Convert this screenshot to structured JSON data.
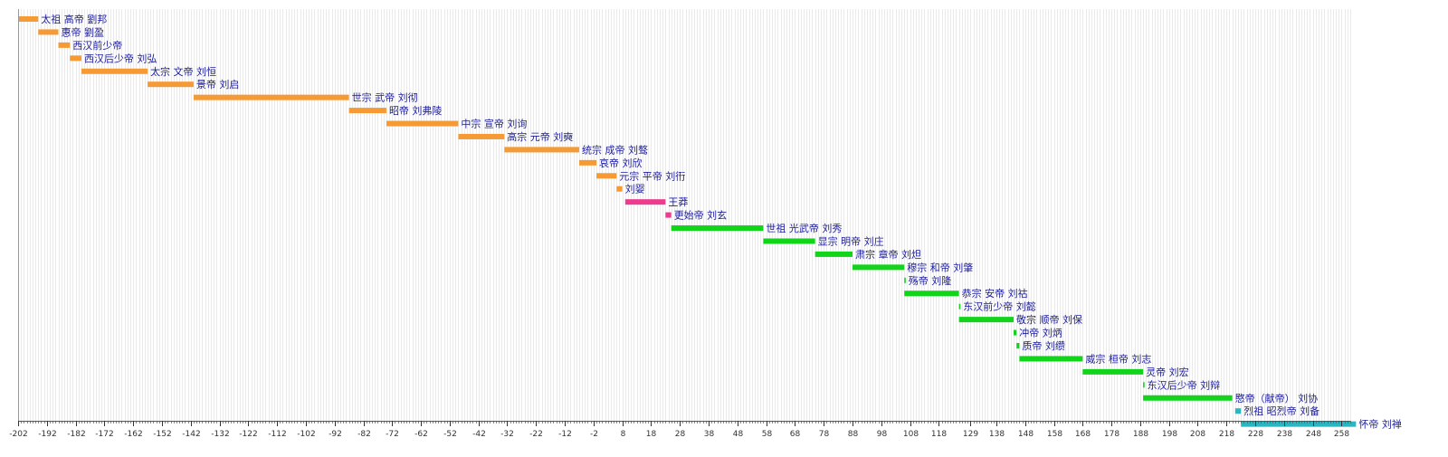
{
  "chart_data": {
    "type": "gantt",
    "title": "",
    "xlabel": "",
    "ylabel": "",
    "xlim": [
      -202,
      261
    ],
    "x_ticks": [
      -202,
      -192,
      -182,
      -172,
      -162,
      -152,
      -142,
      -132,
      -122,
      -112,
      -102,
      -92,
      -82,
      -72,
      -62,
      -52,
      -42,
      -32,
      -22,
      -12,
      -2,
      8,
      18,
      28,
      38,
      48,
      58,
      68,
      78,
      88,
      98,
      108,
      118,
      129,
      138,
      148,
      158,
      168,
      178,
      188,
      198,
      208,
      218,
      228,
      238,
      248,
      258
    ],
    "grid": true,
    "colors": {
      "西汉": "#f59a35",
      "新": "#ef3b8f",
      "东汉": "#11d41b",
      "蜀汉": "#2ab7c2"
    },
    "rows": [
      {
        "label": "太祖 高帝 劉邦",
        "start": -202,
        "end": -195,
        "group": "西汉"
      },
      {
        "label": "惠帝 劉盈",
        "start": -195,
        "end": -188,
        "group": "西汉"
      },
      {
        "label": "西汉前少帝",
        "start": -188,
        "end": -184,
        "group": "西汉"
      },
      {
        "label": "西汉后少帝 刘弘",
        "start": -184,
        "end": -180,
        "group": "西汉"
      },
      {
        "label": "太宗 文帝 刘恒",
        "start": -180,
        "end": -157,
        "group": "西汉"
      },
      {
        "label": "景帝 刘启",
        "start": -157,
        "end": -141,
        "group": "西汉"
      },
      {
        "label": "世宗 武帝 刘彻",
        "start": -141,
        "end": -87,
        "group": "西汉"
      },
      {
        "label": "昭帝 刘弗陵",
        "start": -87,
        "end": -74,
        "group": "西汉"
      },
      {
        "label": "中宗 宣帝 刘询",
        "start": -74,
        "end": -49,
        "group": "西汉"
      },
      {
        "label": "高宗 元帝 刘奭",
        "start": -49,
        "end": -33,
        "group": "西汉"
      },
      {
        "label": "统宗 成帝 刘骜",
        "start": -33,
        "end": -7,
        "group": "西汉"
      },
      {
        "label": "哀帝 刘欣",
        "start": -7,
        "end": -1,
        "group": "西汉"
      },
      {
        "label": "元宗 平帝 刘衎",
        "start": -1,
        "end": 6,
        "group": "西汉"
      },
      {
        "label": "刘婴",
        "start": 6,
        "end": 8,
        "group": "西汉"
      },
      {
        "label": "王莽",
        "start": 9,
        "end": 23,
        "group": "新"
      },
      {
        "label": "更始帝 刘玄",
        "start": 23,
        "end": 25,
        "group": "新"
      },
      {
        "label": "世祖 光武帝 刘秀",
        "start": 25,
        "end": 57,
        "group": "东汉"
      },
      {
        "label": "显宗 明帝 刘庄",
        "start": 57,
        "end": 75,
        "group": "东汉"
      },
      {
        "label": "肃宗 章帝 刘炟",
        "start": 75,
        "end": 88,
        "group": "东汉"
      },
      {
        "label": "穆宗 和帝 刘肇",
        "start": 88,
        "end": 106,
        "group": "东汉"
      },
      {
        "label": "殇帝 刘隆",
        "start": 106,
        "end": 106.5,
        "group": "东汉"
      },
      {
        "label": "恭宗 安帝 刘祜",
        "start": 106,
        "end": 125,
        "group": "东汉"
      },
      {
        "label": "东汉前少帝 刘懿",
        "start": 125,
        "end": 125.5,
        "group": "东汉"
      },
      {
        "label": "敬宗 顺帝 刘保",
        "start": 125,
        "end": 144,
        "group": "东汉"
      },
      {
        "label": "冲帝 刘炳",
        "start": 144,
        "end": 145,
        "group": "东汉"
      },
      {
        "label": "质帝 刘缵",
        "start": 145,
        "end": 146,
        "group": "东汉"
      },
      {
        "label": "威宗 桓帝 刘志",
        "start": 146,
        "end": 168,
        "group": "东汉"
      },
      {
        "label": "灵帝 刘宏",
        "start": 168,
        "end": 189,
        "group": "东汉"
      },
      {
        "label": "东汉后少帝 刘辩",
        "start": 189,
        "end": 189.5,
        "group": "东汉"
      },
      {
        "label": "愍帝（献帝） 刘协",
        "start": 189,
        "end": 220,
        "group": "东汉"
      },
      {
        "label": "烈祖 昭烈帝 刘备",
        "start": 221,
        "end": 223,
        "group": "蜀汉"
      },
      {
        "label": "怀帝 刘禅",
        "start": 223,
        "end": 263,
        "group": "蜀汉"
      }
    ]
  }
}
